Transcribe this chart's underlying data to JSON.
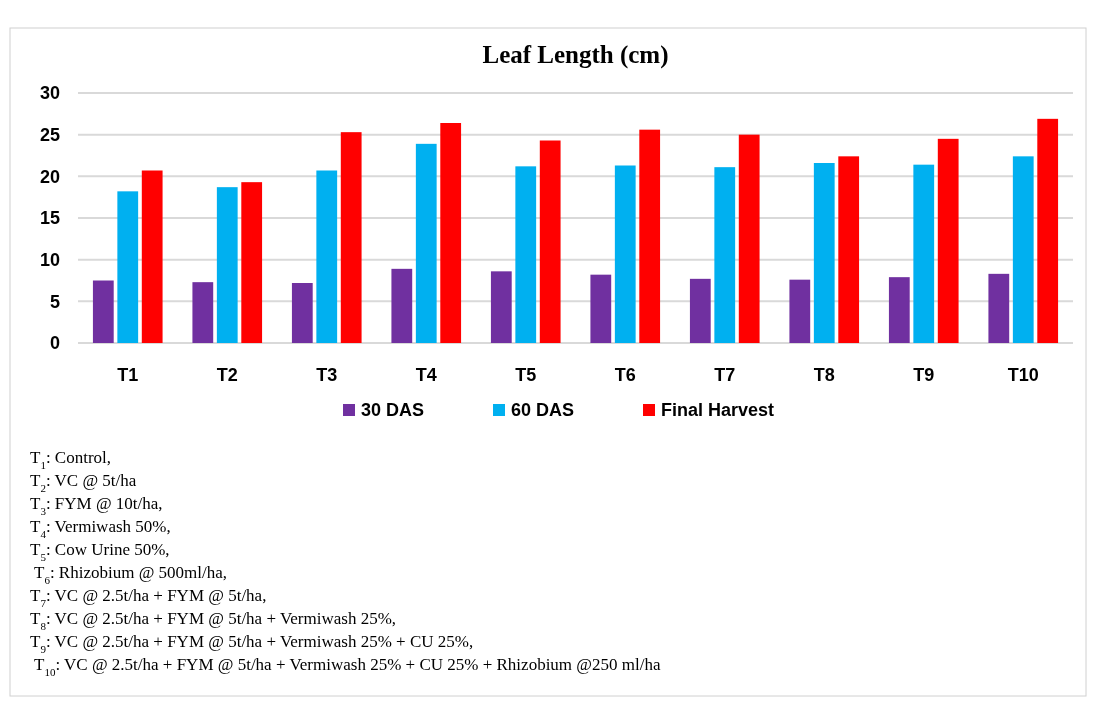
{
  "chart_data": {
    "type": "bar",
    "title": "Leaf Length (cm)",
    "categories": [
      "T1",
      "T2",
      "T3",
      "T4",
      "T5",
      "T6",
      "T7",
      "T8",
      "T9",
      "T10"
    ],
    "series": [
      {
        "name": "30 DAS",
        "color": "#7030a0",
        "values": [
          7.5,
          7.3,
          7.2,
          8.9,
          8.6,
          8.2,
          7.7,
          7.6,
          7.9,
          8.3
        ]
      },
      {
        "name": "60 DAS",
        "color": "#00b0f0",
        "values": [
          18.2,
          18.7,
          20.7,
          23.9,
          21.2,
          21.3,
          21.1,
          21.6,
          21.4,
          22.4
        ]
      },
      {
        "name": "Final Harvest",
        "color": "#ff0000",
        "values": [
          20.7,
          19.3,
          25.3,
          26.4,
          24.3,
          25.6,
          25.0,
          22.4,
          24.5,
          26.9
        ]
      }
    ],
    "ylim": [
      0,
      30
    ],
    "yticks": [
      0,
      5,
      10,
      15,
      20,
      25,
      30
    ],
    "grid": "y",
    "legend": "bottom",
    "annotations": [
      "T$_{1}$: Control,",
      "T$_{2}$: VC @ 5t/ha",
      "T$_{3}$:  FYM @ 10t/ha,",
      "T$_{4}$: Vermiwash 50%,",
      "T$_{5}$: Cow Urine  50%,",
      "T$_{6}$: Rhizobium @ 500ml/ha,",
      "T$_{7}$:  VC @ 2.5t/ha + FYM @ 5t/ha,",
      "T$_{8}$:  VC @ 2.5t/ha + FYM @ 5t/ha  + Vermiwash 25%,",
      "T$_{9}$:  VC @ 2.5t/ha + FYM @ 5t/ha  + Vermiwash 25% + CU 25%,",
      "T$_{10}$: VC @ 2.5t/ha + FYM @ 5t/ha  + Vermiwash 25% + CU 25% + Rhizobium @250 ml/ha"
    ]
  }
}
